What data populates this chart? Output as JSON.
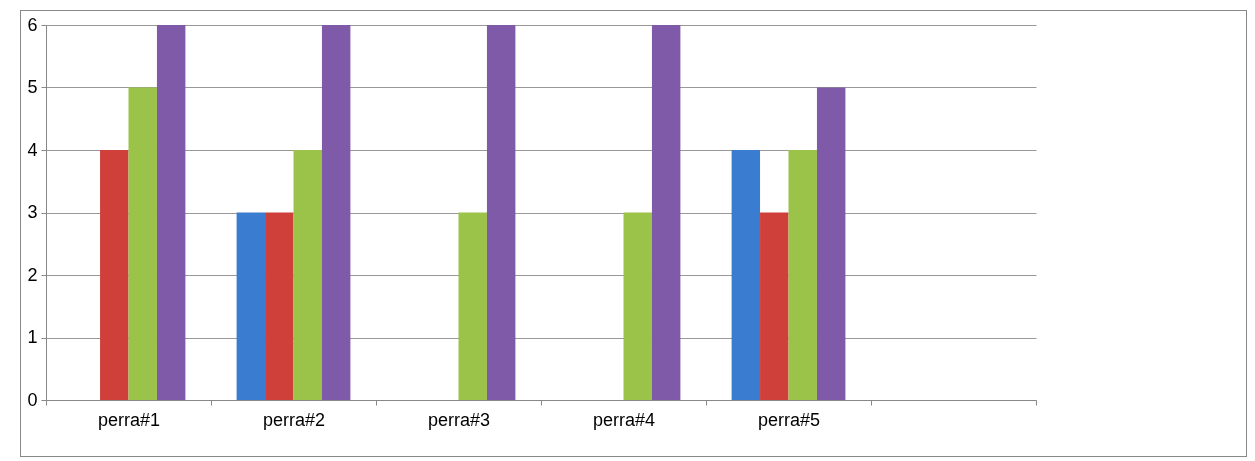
{
  "chart_data": {
    "type": "bar",
    "categories": [
      "perra#1",
      "perra#2",
      "perra#3",
      "perra#4",
      "perra#5",
      null
    ],
    "series": [
      {
        "color": "#3a7dd0",
        "values": [
          null,
          3,
          null,
          null,
          4,
          null
        ]
      },
      {
        "color": "#d0403a",
        "values": [
          4,
          3,
          null,
          null,
          3,
          null
        ]
      },
      {
        "color": "#9bc34a",
        "values": [
          5,
          4,
          3,
          3,
          4,
          null
        ]
      },
      {
        "color": "#7e5aa8",
        "values": [
          6,
          6,
          6,
          6,
          5,
          null
        ]
      }
    ],
    "ylim": [
      0,
      6
    ],
    "yticks": [
      0,
      1,
      2,
      3,
      4,
      5,
      6
    ],
    "grid": "y",
    "legend": false
  }
}
